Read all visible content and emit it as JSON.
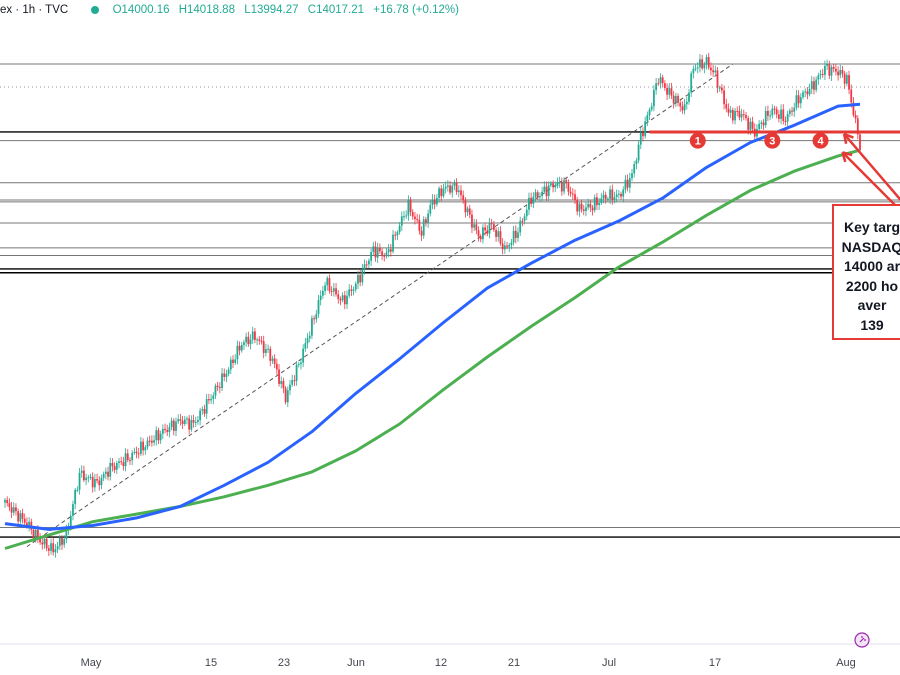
{
  "header": {
    "symbol_fragment": "ex · 1h · TVC",
    "open": "O14000.16",
    "high": "H14018.88",
    "low": "L13994.27",
    "close": "C14017.21",
    "change": "+16.78 (+0.12%)"
  },
  "callout": {
    "lines": [
      "Key targ",
      "NASDAQ",
      "14000 ar",
      "2200 ho",
      "aver",
      "139"
    ]
  },
  "markers": [
    "1",
    "3",
    "4"
  ],
  "colors": {
    "up": "#22ab94",
    "down": "#f23645",
    "ma100": "#2962ff",
    "ma200": "#4caf50",
    "annotation": "#e53935"
  },
  "chart_data": {
    "type": "line",
    "x_labels": [
      "May",
      "15",
      "23",
      "Jun",
      "12",
      "21",
      "Jul",
      "17",
      "Aug"
    ],
    "series": [
      {
        "x": [
          0,
          5,
          8,
          11,
          14,
          17,
          21,
          24,
          28,
          32,
          36,
          40,
          43,
          47,
          51,
          54,
          57,
          61,
          64,
          67,
          70,
          73,
          77,
          80,
          84,
          87,
          90,
          92,
          95,
          97,
          100,
          103,
          106,
          108,
          111,
          114,
          117,
          120,
          122,
          125,
          128,
          131,
          134,
          137,
          140,
          143,
          145,
          147,
          149,
          151,
          153,
          155,
          157,
          160,
          162,
          165,
          168,
          171,
          173,
          175,
          178,
          181,
          184,
          187,
          190,
          192,
          195
        ],
        "values": [
          12150,
          12040,
          11950,
          11900,
          11980,
          12300,
          12250,
          12330,
          12380,
          12450,
          12520,
          12580,
          12560,
          12700,
          12850,
          12980,
          13020,
          12900,
          12700,
          12870,
          13080,
          13300,
          13200,
          13290,
          13470,
          13440,
          13600,
          13700,
          13560,
          13700,
          13790,
          13800,
          13640,
          13540,
          13600,
          13470,
          13570,
          13740,
          13760,
          13810,
          13810,
          13680,
          13700,
          13750,
          13750,
          13860,
          14060,
          14200,
          14370,
          14300,
          14250,
          14200,
          14420,
          14450,
          14380,
          14180,
          14180,
          14080,
          14150,
          14200,
          14150,
          14260,
          14320,
          14420,
          14400,
          14360,
          14017
        ]
      },
      {
        "x": [
          0,
          10,
          20,
          30,
          40,
          50,
          60,
          70,
          80,
          90,
          100,
          110,
          120,
          130,
          140,
          150,
          160,
          170,
          180,
          190,
          195
        ],
        "values": [
          12040,
          12010,
          12030,
          12070,
          12130,
          12240,
          12360,
          12520,
          12720,
          12900,
          13090,
          13270,
          13400,
          13520,
          13620,
          13740,
          13900,
          14030,
          14120,
          14220,
          14230
        ]
      },
      {
        "x": [
          0,
          10,
          20,
          30,
          40,
          50,
          60,
          70,
          80,
          90,
          100,
          110,
          120,
          130,
          140,
          150,
          160,
          170,
          180,
          190,
          195
        ],
        "values": [
          11910,
          11980,
          12050,
          12090,
          12130,
          12180,
          12240,
          12310,
          12420,
          12560,
          12740,
          12910,
          13070,
          13220,
          13380,
          13510,
          13650,
          13780,
          13880,
          13960,
          13990
        ]
      }
    ],
    "levels": [
      14440,
      14085,
      14040,
      13820,
      13730,
      13720,
      13610,
      13480,
      13440,
      13370,
      13350,
      12020,
      11970
    ],
    "trendline": {
      "x": [
        5,
        166
      ],
      "values": [
        11920,
        14440
      ]
    }
  }
}
